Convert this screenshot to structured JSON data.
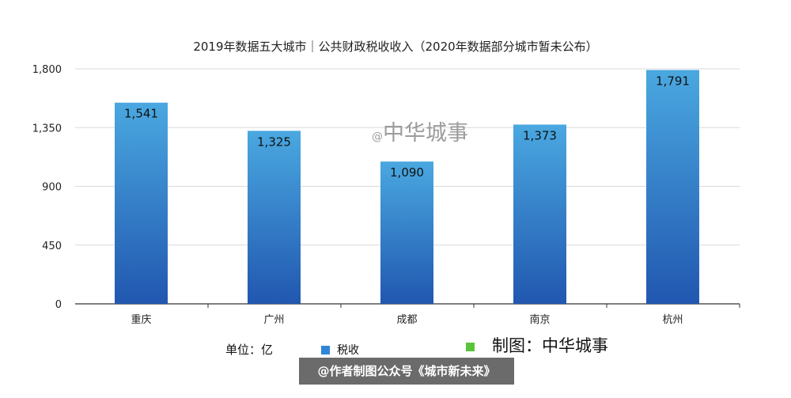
{
  "chart_data": {
    "type": "bar",
    "title": "2019年数据五大城市｜公共财政税收收入（2020年数据部分城市暂未公布）",
    "categories": [
      "重庆",
      "广州",
      "成都",
      "南京",
      "杭州"
    ],
    "series": [
      {
        "name": "税收",
        "values": [
          1541,
          1325,
          1090,
          1373,
          1791
        ]
      }
    ],
    "value_labels": [
      "1,541",
      "1,325",
      "1,090",
      "1,373",
      "1,791"
    ],
    "ylim": [
      0,
      1800
    ],
    "y_ticks": [
      0,
      450,
      900,
      1350,
      1800
    ],
    "y_tick_labels": [
      "0",
      "450",
      "900",
      "1,350",
      "1,800"
    ],
    "grid": true,
    "legend_position": "bottom",
    "colors": {
      "bar_top": "#4aa8e0",
      "bar_bottom": "#2157b0",
      "grid": "#d9d9d9",
      "axis": "#333333"
    }
  },
  "watermark": {
    "at": "@",
    "text": "中华城事"
  },
  "legend": {
    "unit": "单位：亿",
    "series_label": "税收",
    "maker": "制图：中华城事"
  },
  "footer": "@作者制图公众号《城市新未来》"
}
